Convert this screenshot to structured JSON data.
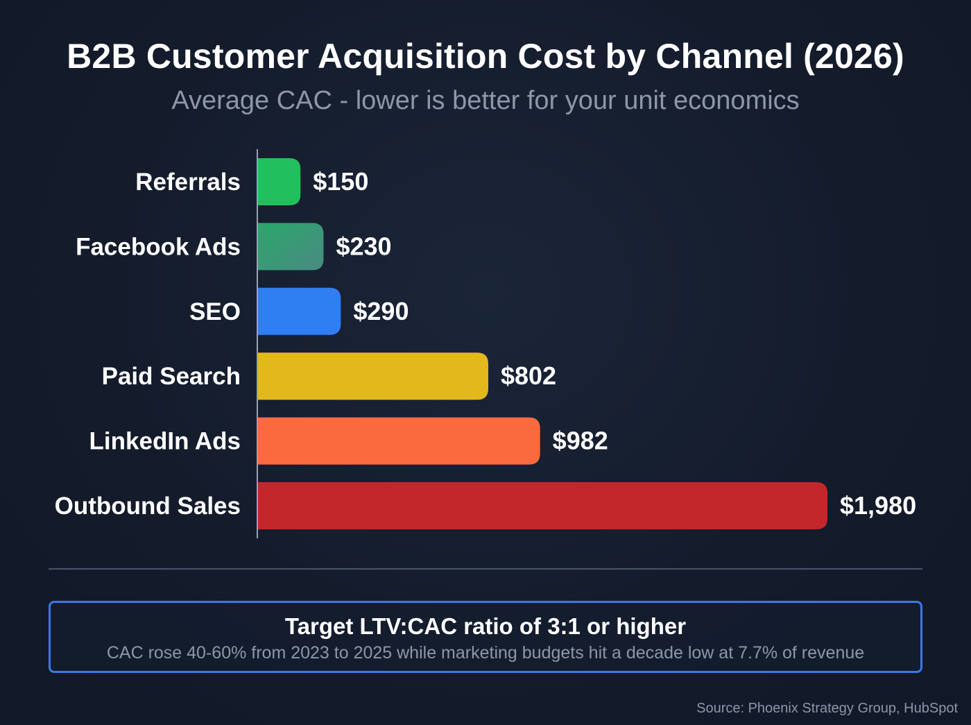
{
  "chart_data": {
    "type": "bar",
    "orientation": "horizontal",
    "title": "B2B Customer Acquisition Cost by Channel (2026)",
    "subtitle": "Average CAC - lower is better for your unit economics",
    "categories": [
      "Referrals",
      "Facebook Ads",
      "SEO",
      "Paid Search",
      "LinkedIn Ads",
      "Outbound Sales"
    ],
    "values": [
      150,
      230,
      290,
      802,
      982,
      1980
    ],
    "value_labels": [
      "$150",
      "$230",
      "$290",
      "$802",
      "$982",
      "$1,980"
    ],
    "colors": [
      "#22c05c",
      "#3f9a74",
      "#2f7ef2",
      "#e3b81c",
      "#fb6a3f",
      "#c4272b"
    ],
    "facebook_gradient": [
      "#2aa86a",
      "#4a8a82"
    ],
    "xlabel": "",
    "ylabel": "",
    "xlim": [
      0,
      1980
    ],
    "grid": false,
    "legend": "none"
  },
  "callout": {
    "title": "Target LTV:CAC ratio of 3:1 or higher",
    "text": "CAC rose 40-60% from 2023 to 2025 while marketing budgets hit a decade low at 7.7% of revenue",
    "border_color": "#3b7ae8"
  },
  "source": "Source: Phoenix Strategy Group, HubSpot"
}
